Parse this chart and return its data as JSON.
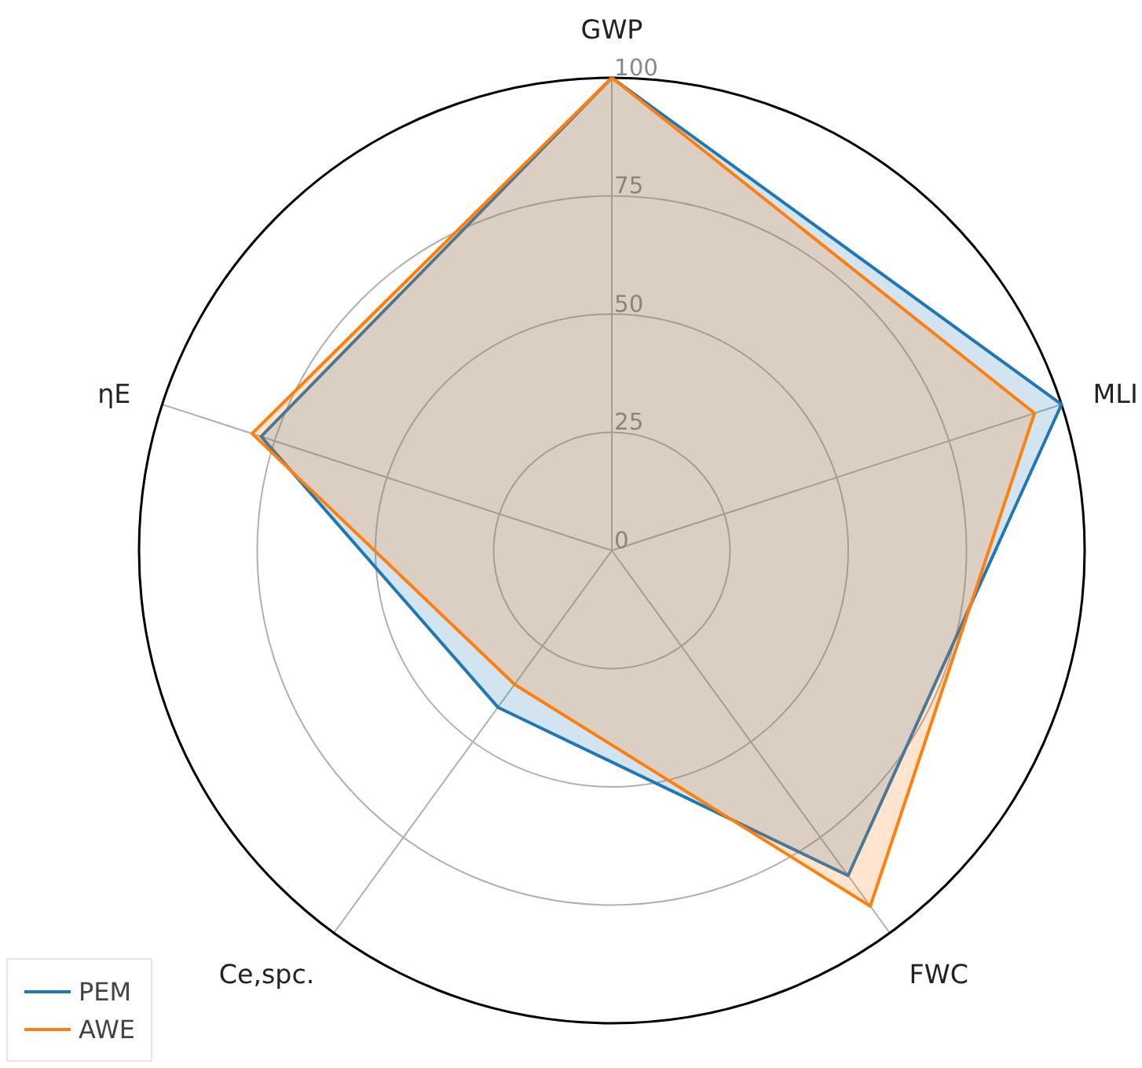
{
  "chart_data": {
    "type": "radar",
    "categories": [
      "GWP",
      "MLI",
      "FWC",
      "Ce,spc.",
      "ηE"
    ],
    "series": [
      {
        "name": "PEM",
        "color": "#1f77b4",
        "values": [
          100,
          100,
          85,
          41,
          78
        ]
      },
      {
        "name": "AWE",
        "color": "#ff7f0e",
        "values": [
          100,
          94,
          93,
          35,
          80
        ]
      }
    ],
    "ylim": [
      0,
      100
    ],
    "yticks": [
      0,
      25,
      50,
      75,
      100
    ],
    "grid": true,
    "legend": "bottom left"
  }
}
